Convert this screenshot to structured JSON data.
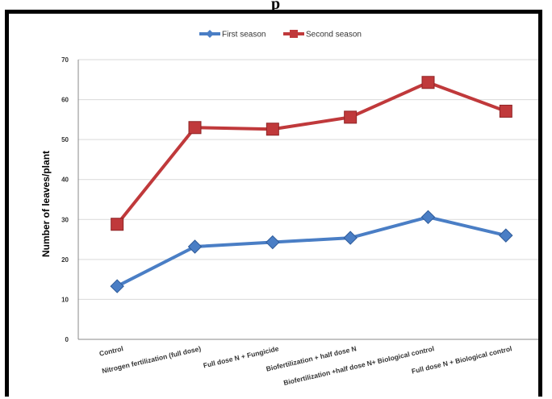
{
  "page": {
    "top_fragment": "p"
  },
  "colors": {
    "first_season": "#4a7ec5",
    "second_season": "#c0393b",
    "grid": "#d9d9d9",
    "axis": "#888888"
  },
  "chart_data": {
    "type": "line",
    "title": "",
    "xlabel": "",
    "ylabel": "Number of leaves/plant",
    "ylim": [
      0,
      70
    ],
    "yticks": [
      0,
      10,
      20,
      30,
      40,
      50,
      60,
      70
    ],
    "grid": true,
    "legend_position": "top",
    "categories": [
      "Control",
      "Nitrogen fertilization (full dose)",
      "Full dose N + Fungicide",
      "Biofertilization + half dose N",
      "Biofertilization +half dose N+ Biological control",
      "Full dose N + Biological control"
    ],
    "series": [
      {
        "name": "First season",
        "marker": "diamond",
        "values": [
          13.3,
          23.2,
          24.3,
          25.4,
          30.6,
          26.0
        ]
      },
      {
        "name": "Second season",
        "marker": "square",
        "values": [
          28.8,
          53.0,
          52.6,
          55.6,
          64.3,
          57.1
        ]
      }
    ]
  }
}
